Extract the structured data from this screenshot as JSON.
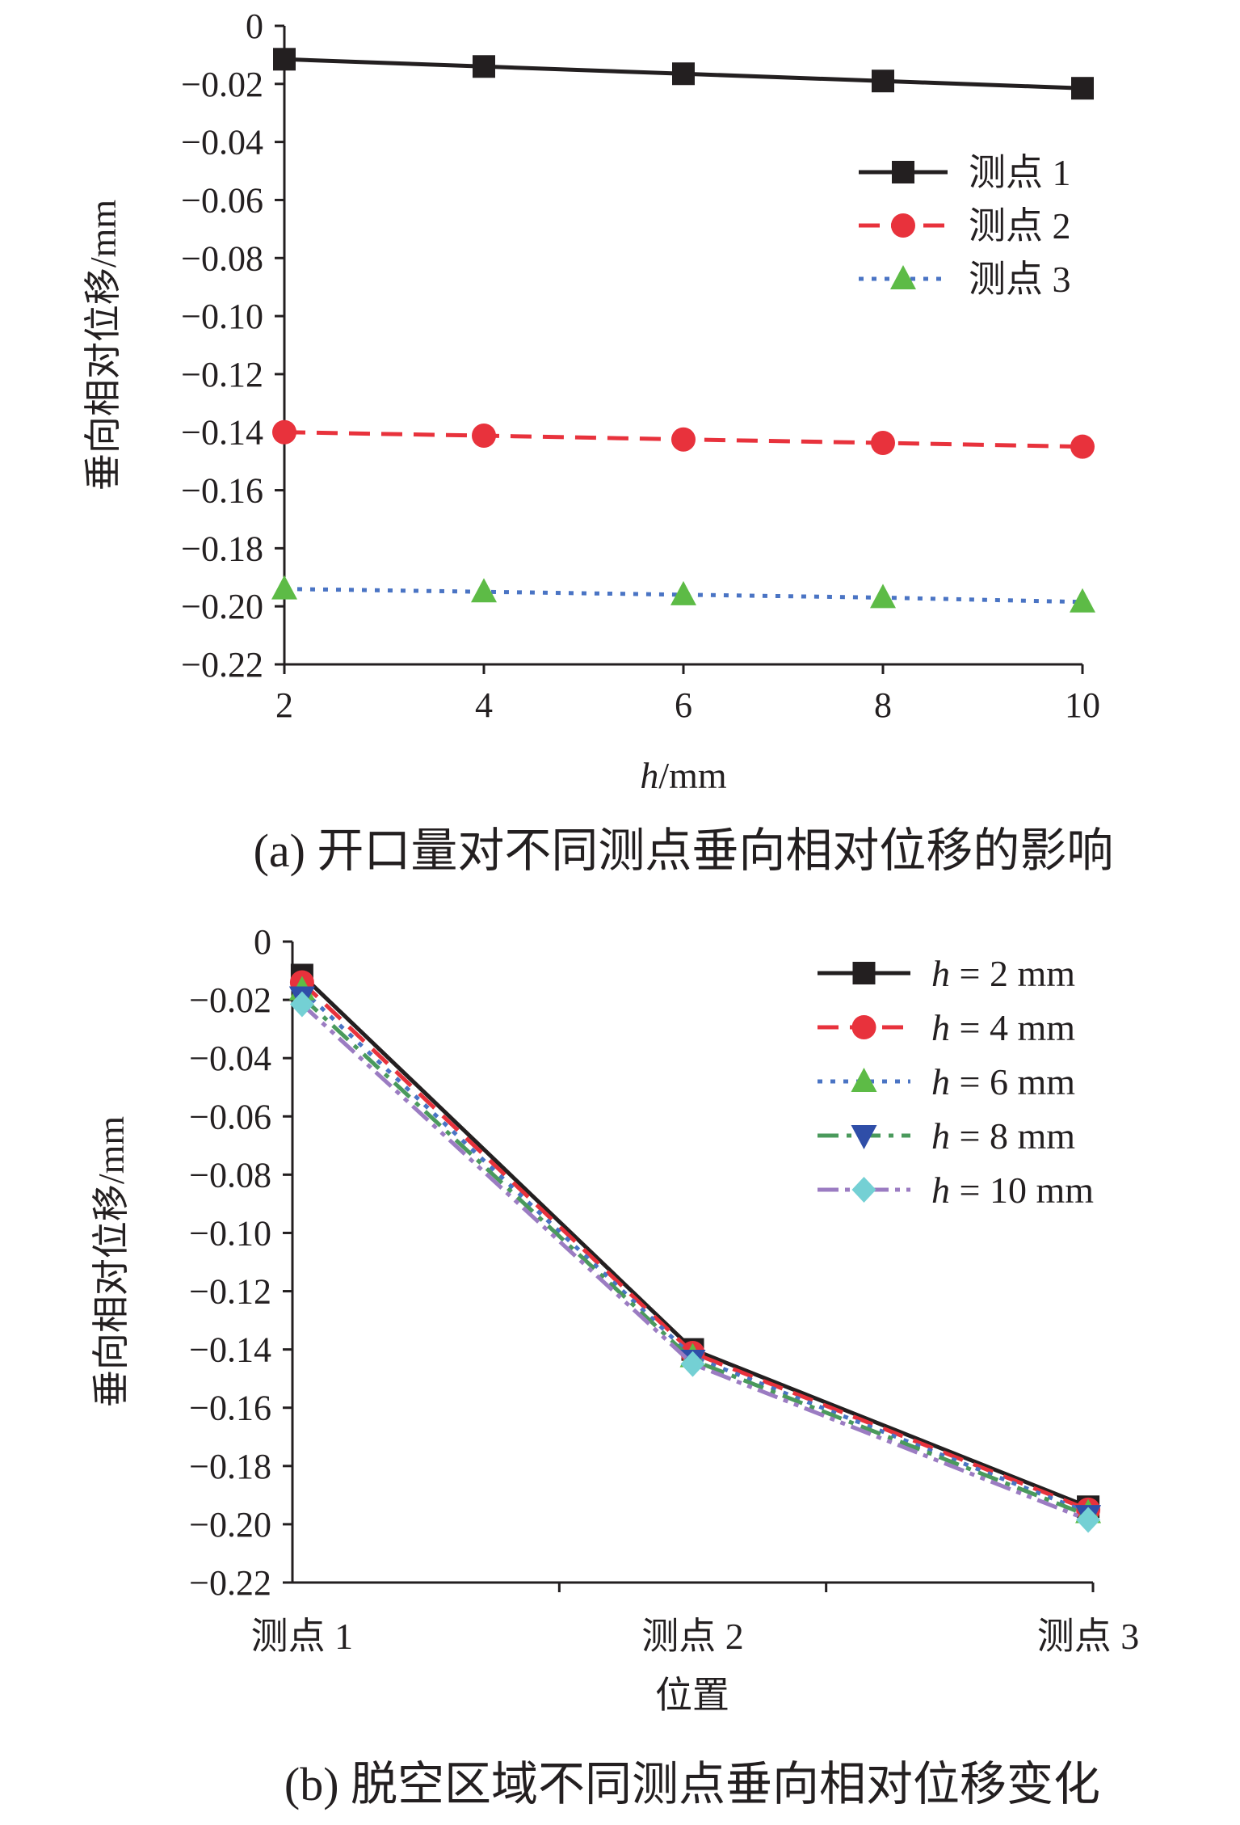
{
  "chart_data": [
    {
      "type": "line",
      "caption": "(a) 开口量对不同测点垂向相对位移的影响",
      "xlabel_italic": "h",
      "xlabel_rest": "/mm",
      "ylabel": "垂向相对位移/mm",
      "x": [
        2,
        4,
        6,
        8,
        10
      ],
      "x_ticks": [
        "2",
        "4",
        "6",
        "8",
        "10"
      ],
      "y_ticks": [
        "0",
        "−0.02",
        "−0.04",
        "−0.06",
        "−0.08",
        "−0.10",
        "−0.12",
        "−0.14",
        "−0.16",
        "−0.18",
        "−0.20",
        "−0.22"
      ],
      "ylim": [
        -0.22,
        0
      ],
      "legend_position": "top-right",
      "series": [
        {
          "name": "测点 1",
          "color": "#231f20",
          "marker": "square",
          "dash": "solid",
          "values": [
            -0.0115,
            -0.014,
            -0.0165,
            -0.019,
            -0.0215
          ]
        },
        {
          "name": "测点 2",
          "color": "#e8323c",
          "marker": "circle",
          "dash": "dashed",
          "values": [
            -0.14,
            -0.1412,
            -0.1425,
            -0.1437,
            -0.145
          ]
        },
        {
          "name": "测点 3",
          "color": "#4a74c4",
          "marker": "triangle-up",
          "marker_color": "#5dbb46",
          "dash": "dotted",
          "values": [
            -0.194,
            -0.195,
            -0.196,
            -0.197,
            -0.1985
          ]
        }
      ]
    },
    {
      "type": "line",
      "caption": "(b) 脱空区域不同测点垂向相对位移变化",
      "xlabel": "位置",
      "ylabel": "垂向相对位移/mm",
      "categories": [
        "测点 1",
        "测点 2",
        "测点 3"
      ],
      "y_ticks": [
        "0",
        "−0.02",
        "−0.04",
        "−0.06",
        "−0.08",
        "−0.10",
        "−0.12",
        "−0.14",
        "−0.16",
        "−0.18",
        "−0.20",
        "−0.22"
      ],
      "ylim": [
        -0.22,
        0
      ],
      "legend_position": "top-right",
      "series": [
        {
          "name_italic": "h",
          "name_rest": " = 2 mm",
          "color": "#231f20",
          "marker": "square",
          "dash": "solid",
          "values": [
            -0.0115,
            -0.14,
            -0.194
          ]
        },
        {
          "name_italic": "h",
          "name_rest": " = 4 mm",
          "color": "#e8323c",
          "marker": "circle",
          "dash": "dashed",
          "values": [
            -0.014,
            -0.1412,
            -0.195
          ]
        },
        {
          "name_italic": "h",
          "name_rest": " = 6 mm",
          "color": "#4a74c4",
          "marker": "triangle-up",
          "marker_color": "#5dbb46",
          "dash": "dotted",
          "values": [
            -0.0165,
            -0.1425,
            -0.196
          ]
        },
        {
          "name_italic": "h",
          "name_rest": " = 8 mm",
          "color": "#4a9a5c",
          "marker": "triangle-down",
          "marker_color": "#2f4ea8",
          "dash": "dashdot",
          "values": [
            -0.019,
            -0.1437,
            -0.197
          ]
        },
        {
          "name_italic": "h",
          "name_rest": " = 10 mm",
          "color": "#9b7cc2",
          "marker": "diamond",
          "marker_color": "#74d0d4",
          "dash": "dashdotdot",
          "values": [
            -0.0215,
            -0.145,
            -0.1985
          ]
        }
      ]
    }
  ]
}
